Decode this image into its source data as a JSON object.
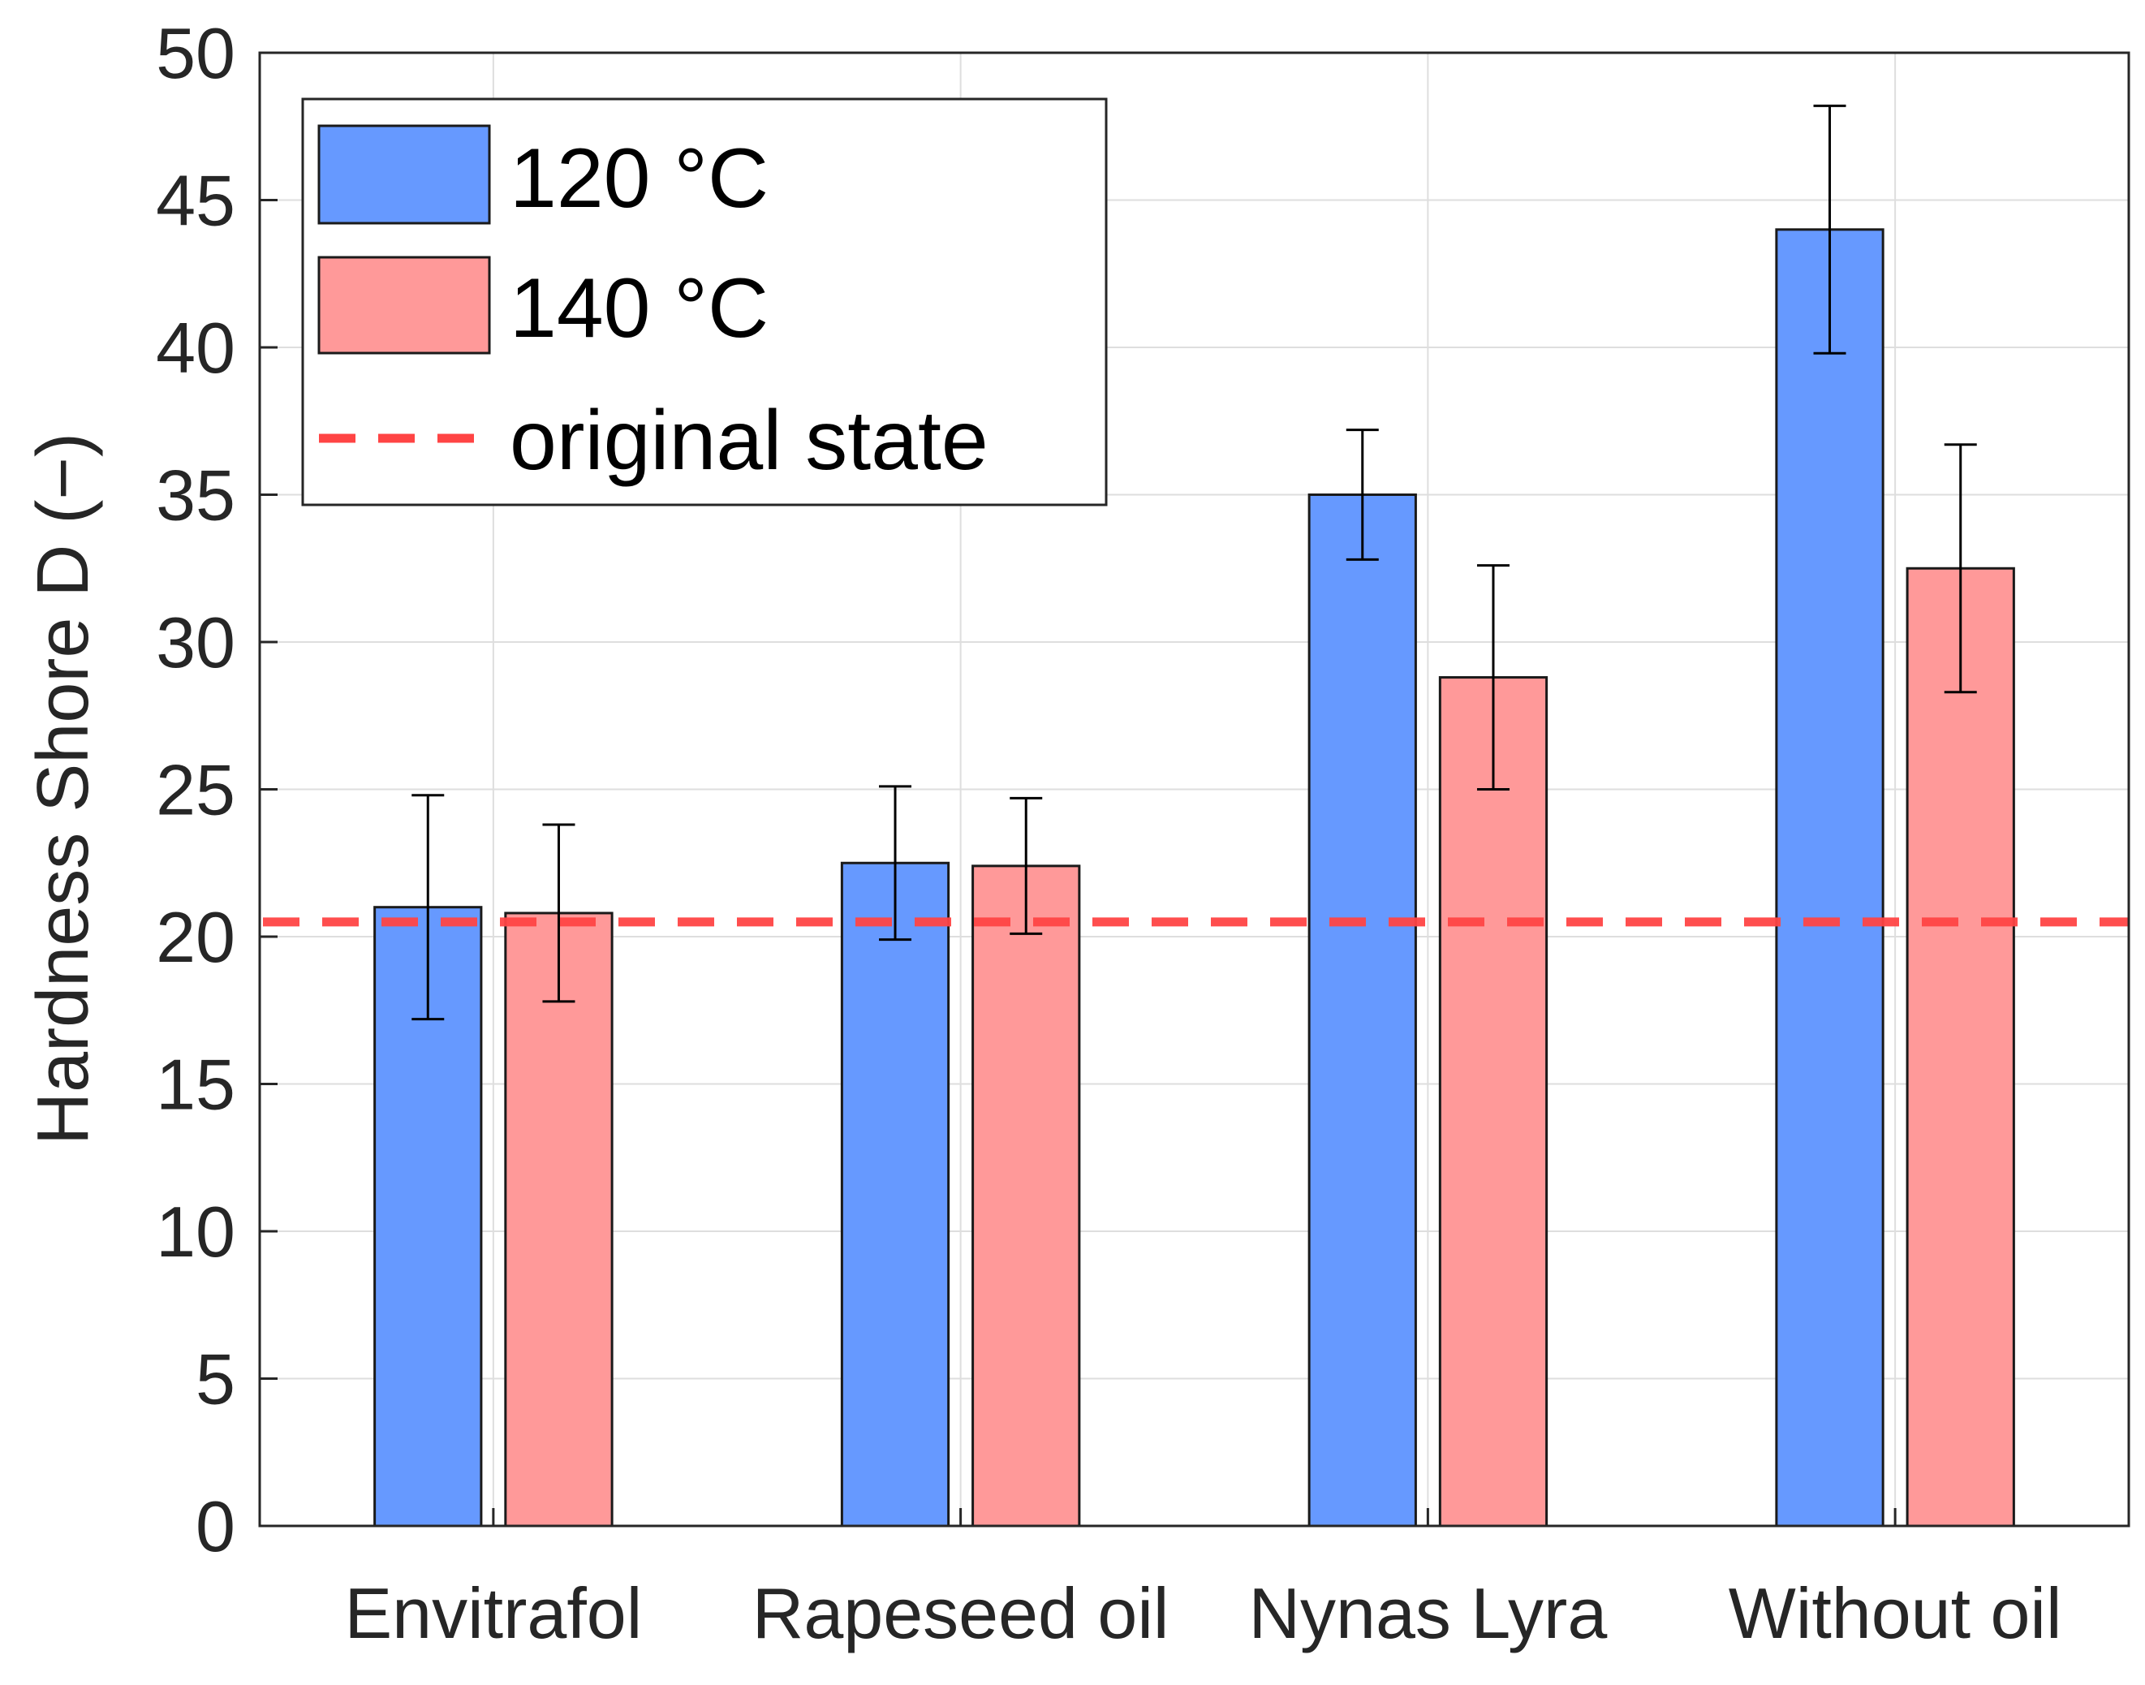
{
  "chart_data": {
    "type": "bar",
    "title": "",
    "xlabel": "",
    "ylabel": "Hardness Shore D (−)",
    "ylim": [
      0,
      50
    ],
    "yticks": [
      0,
      5,
      10,
      15,
      20,
      25,
      30,
      35,
      40,
      45,
      50
    ],
    "grid": true,
    "legend_position": "top-left",
    "categories": [
      "Envitrafol",
      "Rapeseed oil",
      "Nynas Lyra",
      "Without oil"
    ],
    "series": [
      {
        "name": "120 °C",
        "color": "#6699ff",
        "values": [
          21.0,
          22.5,
          35.0,
          44.0
        ],
        "error": [
          3.8,
          2.6,
          2.2,
          4.2
        ]
      },
      {
        "name": "140 °C",
        "color": "#ff9999",
        "values": [
          20.8,
          22.4,
          28.8,
          32.5
        ],
        "error": [
          3.0,
          2.3,
          3.8,
          4.2
        ]
      }
    ],
    "reference_line": {
      "name": "original state",
      "value": 20.5,
      "color": "#ff4444",
      "style": "dashed"
    }
  }
}
